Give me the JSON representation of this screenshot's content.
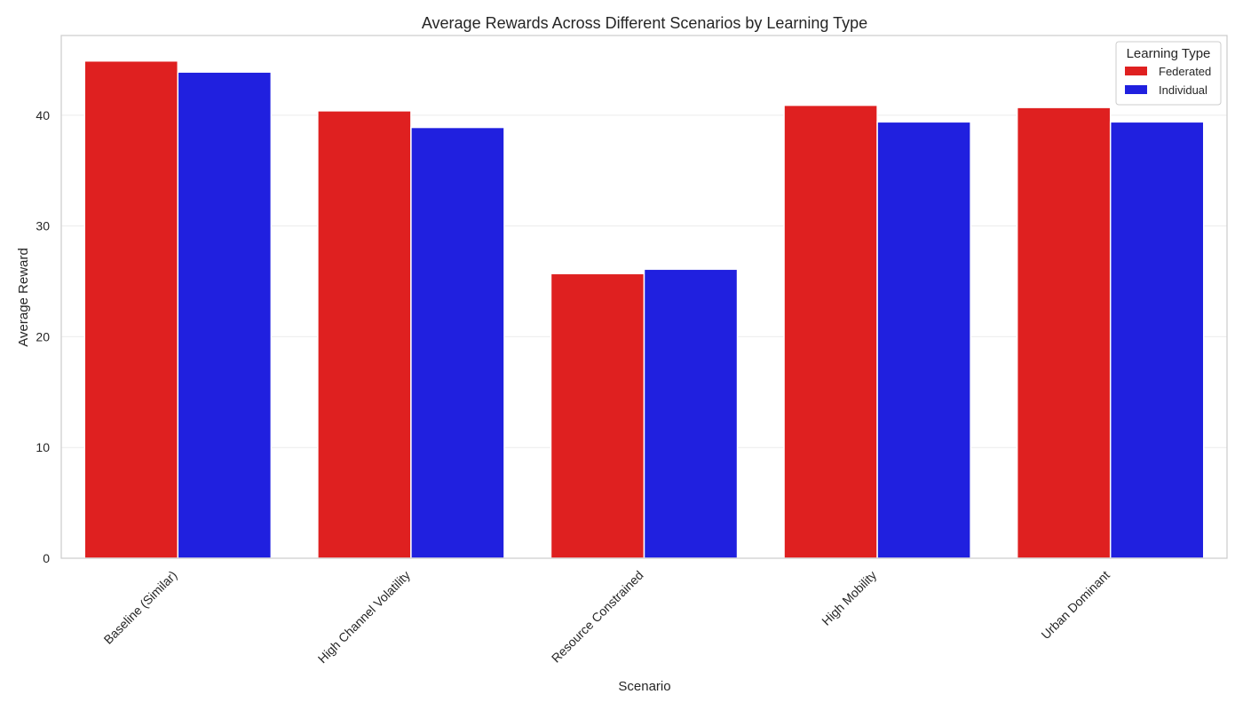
{
  "chart_data": {
    "type": "bar",
    "title": "Average Rewards Across Different Scenarios by Learning Type",
    "xlabel": "Scenario",
    "ylabel": "Average Reward",
    "categories": [
      "Baseline (Similar)",
      "High Channel Volatility",
      "Resource Constrained",
      "High Mobility",
      "Urban Dominant"
    ],
    "series": [
      {
        "name": "Federated",
        "color": "#df2020",
        "values": [
          44.9,
          40.4,
          25.7,
          40.9,
          40.7
        ]
      },
      {
        "name": "Individual",
        "color": "#2020df",
        "values": [
          43.9,
          38.9,
          26.1,
          39.4,
          39.4
        ]
      }
    ],
    "ylim": [
      0,
      47.2
    ],
    "yticks": [
      0,
      10,
      20,
      30,
      40
    ],
    "grid": true,
    "legend": {
      "title": "Learning Type",
      "position": "top-right"
    }
  }
}
